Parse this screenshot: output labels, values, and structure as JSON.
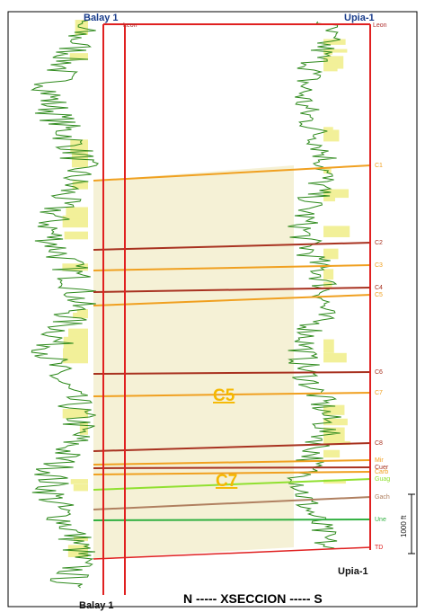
{
  "wells": {
    "left": {
      "top_label": "Balay 1",
      "top_sub": "Leon",
      "bottom_label": "Balay 1"
    },
    "right": {
      "top_label": "Upia-1",
      "top_sub": "Leon",
      "bottom_label": "Upia-1"
    }
  },
  "horizons": [
    {
      "name": "C1",
      "color": "#f0a020"
    },
    {
      "name": "C2",
      "color": "#a83220"
    },
    {
      "name": "C3",
      "color": "#f0a020"
    },
    {
      "name": "C4",
      "color": "#a83220"
    },
    {
      "name": "C5",
      "color": "#f0a020"
    },
    {
      "name": "C6",
      "color": "#a83220"
    },
    {
      "name": "C7",
      "color": "#f0a020"
    },
    {
      "name": "C8",
      "color": "#a83220"
    },
    {
      "name": "Mir",
      "color": "#f0a020"
    },
    {
      "name": "Cuer",
      "color": "#a83220"
    },
    {
      "name": "Carb",
      "color": "#f0a020"
    },
    {
      "name": "Guag",
      "color": "#90e030"
    },
    {
      "name": "Gach",
      "color": "#b08060"
    },
    {
      "name": "Une",
      "color": "#30b040"
    },
    {
      "name": "TD",
      "color": "#e02020"
    }
  ],
  "annotations": {
    "c5_label": "C5",
    "c7_label": "C7",
    "annotation_color": "#f5b800"
  },
  "scale_bar": {
    "label": "1000 ft"
  },
  "section_title": "N ----- XSECCION ----- S",
  "colors": {
    "log_green": "#2e8a1c",
    "fill_yellow": "#f2f099",
    "well_red": "#e02020",
    "shade": "#f3efcf"
  }
}
